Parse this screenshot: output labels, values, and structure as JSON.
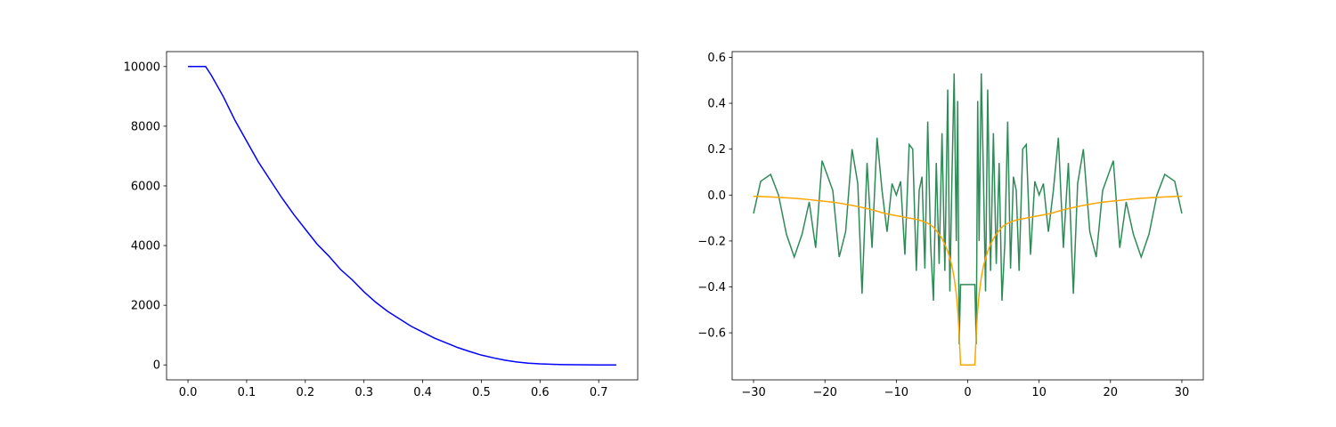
{
  "chart_data": [
    {
      "type": "line",
      "x": [
        0,
        0.02,
        0.03,
        0.04,
        0.06,
        0.08,
        0.1,
        0.12,
        0.14,
        0.16,
        0.18,
        0.2,
        0.22,
        0.24,
        0.26,
        0.28,
        0.3,
        0.32,
        0.34,
        0.36,
        0.38,
        0.4,
        0.42,
        0.44,
        0.46,
        0.48,
        0.5,
        0.52,
        0.54,
        0.56,
        0.58,
        0.6,
        0.62,
        0.64,
        0.66,
        0.68,
        0.7,
        0.72,
        0.73
      ],
      "series": [
        {
          "color": "#0000ff",
          "values": [
            10000,
            10000,
            10000,
            9700,
            9000,
            8200,
            7500,
            6800,
            6200,
            5600,
            5050,
            4550,
            4050,
            3650,
            3200,
            2850,
            2450,
            2100,
            1800,
            1550,
            1300,
            1100,
            900,
            740,
            580,
            450,
            330,
            240,
            160,
            100,
            60,
            35,
            20,
            10,
            5,
            2,
            1,
            0,
            0
          ]
        }
      ],
      "xlim": [
        -0.0365,
        0.7665
      ],
      "xticks": [
        {
          "value": 0,
          "label": "0.0"
        },
        {
          "value": 0.1,
          "label": "0.1"
        },
        {
          "value": 0.2,
          "label": "0.2"
        },
        {
          "value": 0.3,
          "label": "0.3"
        },
        {
          "value": 0.4,
          "label": "0.4"
        },
        {
          "value": 0.5,
          "label": "0.5"
        },
        {
          "value": 0.6,
          "label": "0.6"
        },
        {
          "value": 0.7,
          "label": "0.7"
        }
      ],
      "ylim": [
        -500,
        10500
      ],
      "yticks": [
        0,
        2000,
        4000,
        6000,
        8000,
        10000
      ]
    },
    {
      "type": "line",
      "x": [
        -30,
        -29,
        -27.6,
        -26.5,
        -25.4,
        -24.3,
        -23.2,
        -22.2,
        -21.3,
        -20.4,
        -18.9,
        -18,
        -17.1,
        -16.2,
        -15.4,
        -14.8,
        -14.1,
        -13.4,
        -12.7,
        -12,
        -11.3,
        -10.6,
        -10,
        -9.4,
        -8.8,
        -8.2,
        -7.7,
        -7.2,
        -6.8,
        -6.4,
        -6,
        -5.6,
        -5.2,
        -4.8,
        -4.4,
        -4,
        -3.6,
        -3.2,
        -2.8,
        -2.5,
        -2.2,
        -1.9,
        -1.6,
        -1.4,
        -1.2,
        -1,
        1,
        1.2,
        1.4,
        1.6,
        1.9,
        2.2,
        2.5,
        2.8,
        3.2,
        3.6,
        4,
        4.4,
        4.8,
        5.2,
        5.6,
        6,
        6.4,
        6.8,
        7.2,
        7.7,
        8.2,
        8.8,
        9.4,
        10,
        10.6,
        11.3,
        12,
        12.7,
        13.4,
        14.1,
        14.8,
        15.4,
        16.2,
        17.1,
        18,
        18.9,
        20.4,
        21.3,
        22.2,
        23.2,
        24.3,
        25.4,
        26.5,
        27.6,
        29,
        30
      ],
      "series": [
        {
          "color": "#2e8b57",
          "values": [
            -0.08,
            0.06,
            0.09,
            0.0,
            -0.17,
            -0.27,
            -0.17,
            -0.03,
            -0.23,
            0.15,
            0.02,
            -0.27,
            -0.16,
            0.2,
            0.05,
            -0.43,
            0.14,
            -0.23,
            0.25,
            0.02,
            -0.16,
            0.05,
            0.0,
            0.06,
            -0.26,
            0.22,
            0.2,
            -0.33,
            0.02,
            0.08,
            -0.32,
            0.32,
            -0.21,
            -0.46,
            0.14,
            -0.3,
            0.27,
            -0.33,
            0.46,
            -0.42,
            0.09,
            0.53,
            -0.2,
            0.41,
            -0.65,
            -0.39,
            -0.39,
            -0.65,
            0.41,
            -0.2,
            0.53,
            0.09,
            -0.42,
            0.46,
            -0.33,
            0.27,
            -0.3,
            0.14,
            -0.46,
            -0.21,
            0.32,
            -0.32,
            0.08,
            0.02,
            -0.33,
            0.2,
            0.22,
            -0.26,
            0.06,
            0.0,
            0.05,
            -0.16,
            0.02,
            0.25,
            -0.23,
            0.14,
            -0.43,
            0.05,
            0.2,
            -0.16,
            -0.27,
            0.02,
            0.15,
            -0.23,
            -0.03,
            -0.17,
            -0.27,
            -0.17,
            0.0,
            0.09,
            0.06,
            -0.08
          ]
        },
        {
          "color": "#ffa500",
          "values": [
            -0.005,
            -0.006,
            -0.008,
            -0.01,
            -0.012,
            -0.014,
            -0.017,
            -0.02,
            -0.023,
            -0.026,
            -0.031,
            -0.035,
            -0.04,
            -0.045,
            -0.05,
            -0.054,
            -0.059,
            -0.064,
            -0.07,
            -0.077,
            -0.082,
            -0.086,
            -0.09,
            -0.093,
            -0.097,
            -0.1,
            -0.103,
            -0.106,
            -0.109,
            -0.113,
            -0.118,
            -0.123,
            -0.13,
            -0.14,
            -0.155,
            -0.17,
            -0.19,
            -0.215,
            -0.245,
            -0.275,
            -0.31,
            -0.36,
            -0.43,
            -0.5,
            -0.6,
            -0.74,
            -0.74,
            -0.6,
            -0.5,
            -0.43,
            -0.36,
            -0.31,
            -0.275,
            -0.245,
            -0.215,
            -0.19,
            -0.17,
            -0.155,
            -0.14,
            -0.13,
            -0.123,
            -0.118,
            -0.113,
            -0.109,
            -0.106,
            -0.103,
            -0.1,
            -0.097,
            -0.093,
            -0.09,
            -0.086,
            -0.082,
            -0.077,
            -0.07,
            -0.064,
            -0.059,
            -0.054,
            -0.05,
            -0.045,
            -0.04,
            -0.035,
            -0.031,
            -0.026,
            -0.023,
            -0.02,
            -0.017,
            -0.014,
            -0.012,
            -0.01,
            -0.008,
            -0.006,
            -0.005
          ]
        }
      ],
      "xlim": [
        -33,
        33
      ],
      "xticks": [
        {
          "value": -30,
          "label": "−30"
        },
        {
          "value": -20,
          "label": "−20"
        },
        {
          "value": -10,
          "label": "−10"
        },
        0,
        10,
        20,
        30
      ],
      "ylim": [
        -0.805,
        0.625
      ],
      "yticks": [
        {
          "value": -0.6,
          "label": "−0.6"
        },
        {
          "value": -0.4,
          "label": "−0.4"
        },
        {
          "value": -0.2,
          "label": "−0.2"
        },
        {
          "value": 0,
          "label": "0.0"
        },
        {
          "value": 0.2,
          "label": "0.2"
        },
        {
          "value": 0.4,
          "label": "0.4"
        },
        {
          "value": 0.6,
          "label": "0.6"
        }
      ]
    }
  ]
}
